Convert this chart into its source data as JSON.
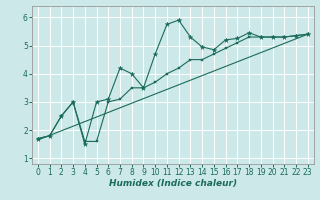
{
  "title": "",
  "xlabel": "Humidex (Indice chaleur)",
  "bg_color": "#cce8e8",
  "line_color": "#1a6b5a",
  "xlim": [
    -0.5,
    23.5
  ],
  "ylim": [
    0.8,
    6.4
  ],
  "xticks": [
    0,
    1,
    2,
    3,
    4,
    5,
    6,
    7,
    8,
    9,
    10,
    11,
    12,
    13,
    14,
    15,
    16,
    17,
    18,
    19,
    20,
    21,
    22,
    23
  ],
  "yticks": [
    1,
    2,
    3,
    4,
    5,
    6
  ],
  "line1_x": [
    0,
    1,
    2,
    3,
    4,
    5,
    6,
    7,
    8,
    9,
    10,
    11,
    12,
    13,
    14,
    15,
    16,
    17,
    18,
    19,
    20,
    21,
    22,
    23
  ],
  "line1_y": [
    1.7,
    1.8,
    2.5,
    3.0,
    1.5,
    3.0,
    3.1,
    4.2,
    4.0,
    3.5,
    4.7,
    5.75,
    5.9,
    5.3,
    4.95,
    4.85,
    5.2,
    5.25,
    5.45,
    5.3,
    5.3,
    5.3,
    5.35,
    5.4
  ],
  "line2_x": [
    0,
    1,
    2,
    3,
    4,
    5,
    6,
    7,
    8,
    9,
    10,
    11,
    12,
    13,
    14,
    15,
    16,
    17,
    18,
    19,
    20,
    21,
    22,
    23
  ],
  "line2_y": [
    1.7,
    1.8,
    2.5,
    3.0,
    1.6,
    1.6,
    3.0,
    3.1,
    3.5,
    3.5,
    3.7,
    4.0,
    4.2,
    4.5,
    4.5,
    4.7,
    4.9,
    5.1,
    5.3,
    5.3,
    5.3,
    5.3,
    5.35,
    5.4
  ],
  "line3_x": [
    0,
    23
  ],
  "line3_y": [
    1.65,
    5.4
  ],
  "tick_fontsize": 5.5,
  "xlabel_fontsize": 6.5
}
